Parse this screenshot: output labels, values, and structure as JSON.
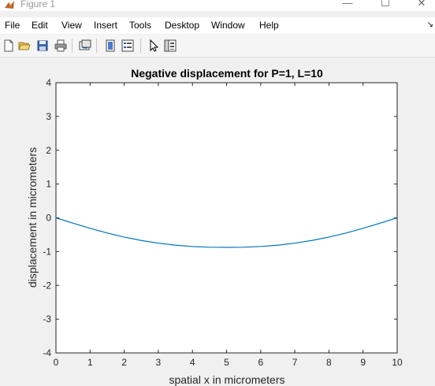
{
  "window": {
    "title": "Figure 1",
    "minimize_glyph": "—",
    "maximize_glyph": "☐",
    "close_glyph": "✕"
  },
  "menubar": {
    "items": [
      "File",
      "Edit",
      "View",
      "Insert",
      "Tools",
      "Desktop",
      "Window",
      "Help"
    ],
    "overflow_glyph": "↘"
  },
  "toolbar": {
    "buttons": [
      "new-figure-icon",
      "open-file-icon",
      "save-icon",
      "print-icon",
      "link-plot-icon",
      "colorbar-icon",
      "legend-icon",
      "select-pointer-icon",
      "property-inspector-icon"
    ]
  },
  "colors": {
    "line": "#0072BD",
    "axes_bg": "#ffffff",
    "figure_bg": "#f0f0f0"
  },
  "chart_data": {
    "type": "line",
    "title": "Negative displacement for P=1, L=10",
    "xlabel": "spatial x in micrometers",
    "ylabel": "displacement in micrometers",
    "xlim": [
      0,
      10
    ],
    "ylim": [
      -4,
      4
    ],
    "xticks": [
      "0",
      "1",
      "2",
      "3",
      "4",
      "5",
      "6",
      "7",
      "8",
      "9",
      "10"
    ],
    "yticks": [
      "4",
      "3",
      "2",
      "1",
      "0",
      "-1",
      "-2",
      "-3",
      "-4"
    ],
    "series": [
      {
        "x": [
          0,
          0.5,
          1,
          1.5,
          2,
          2.5,
          3,
          3.5,
          4,
          4.5,
          5,
          5.5,
          6,
          6.5,
          7,
          7.5,
          8,
          8.5,
          9,
          9.5,
          10
        ],
        "y": [
          0,
          -0.16,
          -0.31,
          -0.45,
          -0.57,
          -0.67,
          -0.75,
          -0.81,
          -0.85,
          -0.87,
          -0.875,
          -0.87,
          -0.85,
          -0.81,
          -0.75,
          -0.67,
          -0.57,
          -0.45,
          -0.31,
          -0.16,
          0
        ]
      }
    ]
  }
}
